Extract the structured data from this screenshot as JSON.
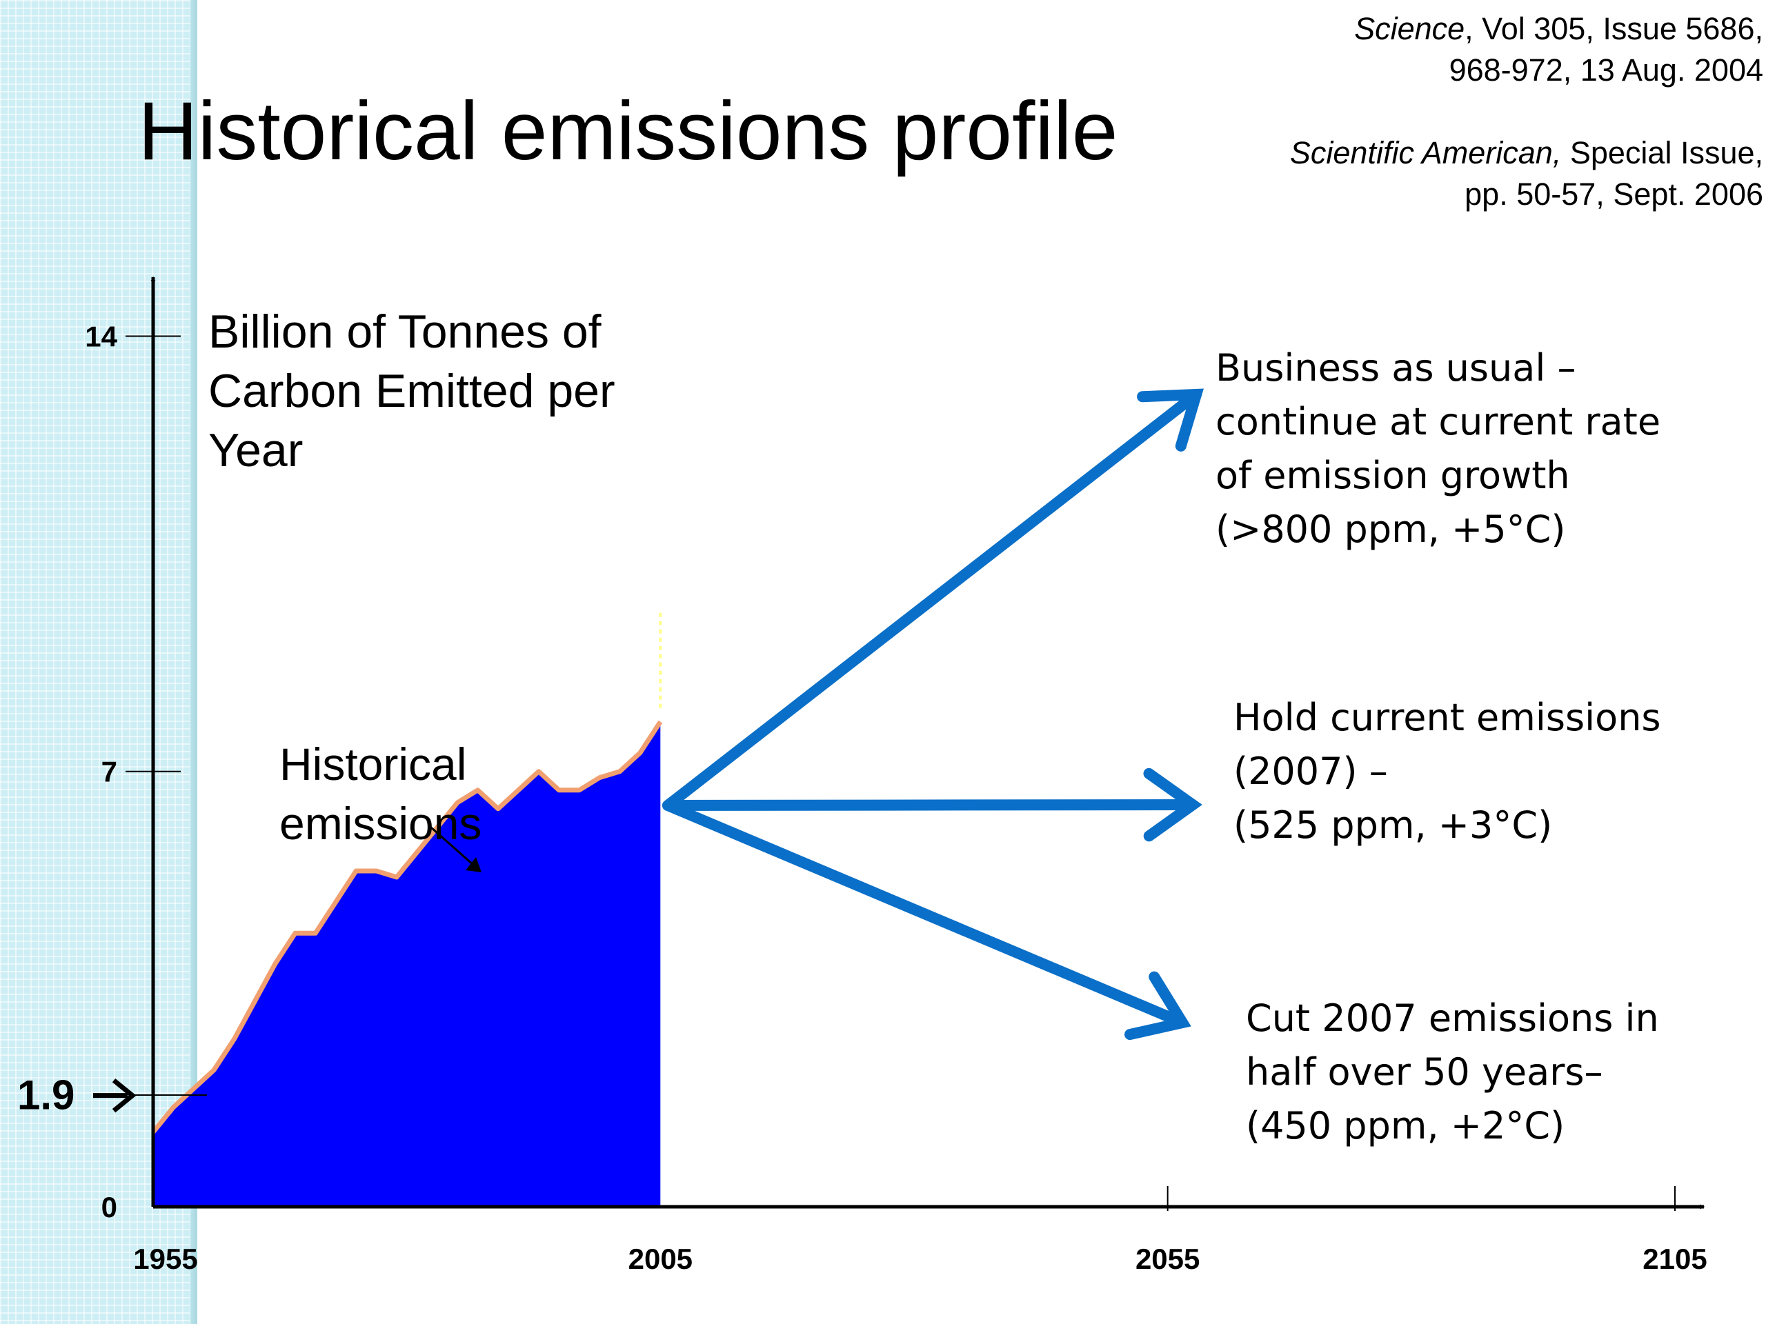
{
  "title": "Historical emissions profile",
  "references": [
    {
      "journal": "Science",
      "details": ", Vol 305, Issue 5686,",
      "line2": "968-972, 13 Aug. 2004"
    },
    {
      "journal": "Scientific American,",
      "details": " Special Issue,",
      "line2": "pp. 50-57, Sept. 2006"
    }
  ],
  "chart_data": {
    "type": "area",
    "ylabel": "Billion of Tonnes of\nCarbon Emitted per\nYear",
    "xlabel": "",
    "x_ticks": [
      "1955",
      "2005",
      "2055",
      "2105"
    ],
    "x_tick_values": [
      1955,
      2005,
      2055,
      2105
    ],
    "y_ticks": [
      "0",
      "7",
      "14"
    ],
    "y_tick_values": [
      0,
      7,
      14
    ],
    "xlim": [
      1955,
      2105
    ],
    "ylim": [
      0,
      16.5
    ],
    "marker": {
      "label": "1.9",
      "value": 1.9
    },
    "series": [
      {
        "name": "Historical emissions",
        "color": "#0000ff",
        "outline_color": "#f0a070",
        "x": [
          1955,
          1957,
          1959,
          1961,
          1963,
          1965,
          1967,
          1969,
          1971,
          1973,
          1975,
          1977,
          1979,
          1981,
          1983,
          1985,
          1987,
          1989,
          1991,
          1993,
          1995,
          1997,
          1999,
          2001,
          2003,
          2005
        ],
        "y": [
          1.2,
          1.6,
          1.9,
          2.2,
          2.7,
          3.3,
          3.9,
          4.4,
          4.4,
          4.9,
          5.4,
          5.4,
          5.3,
          5.7,
          6.1,
          6.5,
          6.7,
          6.4,
          6.7,
          7.0,
          6.7,
          6.7,
          6.9,
          7.0,
          7.3,
          7.8
        ]
      }
    ],
    "annotations": [
      {
        "text": "Historical\nemissions",
        "points_to": "series"
      }
    ],
    "scenarios": [
      {
        "text": "Business as usual –\ncontinue at current rate\nof emission growth\n(>800 ppm, +5°C)",
        "end_year": 2057,
        "end_value": 14.5
      },
      {
        "text": "Hold current emissions\n(2007) –\n(525 ppm, +3°C)",
        "end_year": 2057,
        "end_value": 7.0
      },
      {
        "text": "Cut 2007 emissions in\nhalf over 50 years–\n(450 ppm, +2°C)",
        "end_year": 2057,
        "end_value": 3.0
      }
    ],
    "arrow_color": "#0a6fc8",
    "grid": false,
    "legend": "none"
  }
}
